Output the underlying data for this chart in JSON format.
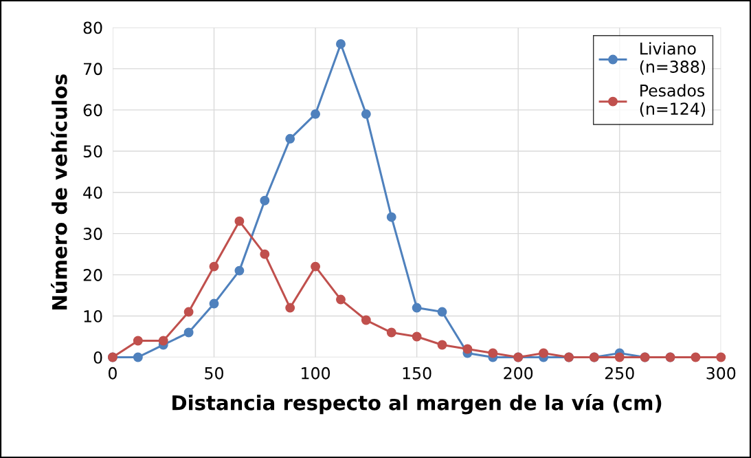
{
  "chart_data": {
    "type": "line",
    "xlabel": "Distancia respecto al margen de la vía (cm)",
    "ylabel": "Número de vehículos",
    "x": [
      0,
      12.5,
      25,
      37.5,
      50,
      62.5,
      75,
      87.5,
      100,
      112.5,
      125,
      137.5,
      150,
      162.5,
      175,
      187.5,
      200,
      212.5,
      225,
      237.5,
      250,
      262.5,
      275,
      287.5,
      300
    ],
    "series": [
      {
        "name": "Liviano\n(n=388)",
        "color": "#4f81bd",
        "values": [
          0,
          0,
          3,
          6,
          13,
          21,
          38,
          53,
          59,
          76,
          59,
          34,
          12,
          11,
          1,
          0,
          0,
          0,
          0,
          0,
          1,
          0,
          0,
          null,
          null
        ]
      },
      {
        "name": "Pesados\n(n=124)",
        "color": "#c0504d",
        "values": [
          0,
          4,
          4,
          11,
          22,
          33,
          25,
          12,
          22,
          14,
          9,
          6,
          5,
          3,
          2,
          1,
          0,
          1,
          0,
          0,
          0,
          0,
          0,
          0,
          0
        ]
      }
    ],
    "xlim": [
      0,
      300
    ],
    "xticks": [
      0,
      50,
      100,
      150,
      200,
      250,
      300
    ],
    "ylim": [
      0,
      80
    ],
    "yticks": [
      0,
      10,
      20,
      30,
      40,
      50,
      60,
      70,
      80
    ],
    "grid": true,
    "legend": "top right",
    "marker": "circle",
    "line_style": "solid"
  }
}
